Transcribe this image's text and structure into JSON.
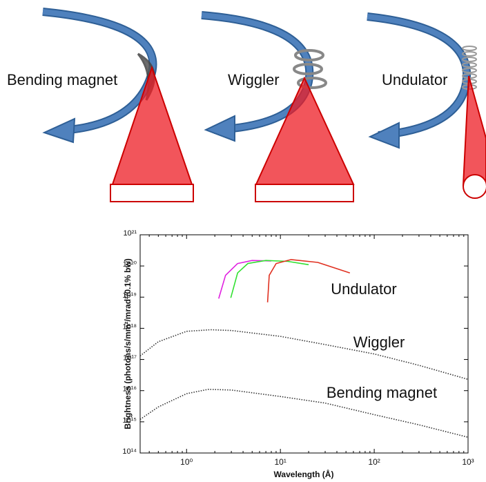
{
  "diagram": {
    "labels": [
      "Bending magnet",
      "Wiggler",
      "Undulator"
    ]
  },
  "chart_data": {
    "type": "line",
    "xlabel": "Wavelength (Å)",
    "ylabel": "Brightness (photons/s/mm²/mrad²/0.1% bw)",
    "xscale": "log",
    "yscale": "log",
    "xlim": [
      0.32,
      1000
    ],
    "ylim": [
      100000000000000.0,
      1e+21
    ],
    "xticks": [
      {
        "value": 1,
        "label": "10⁰"
      },
      {
        "value": 10,
        "label": "10¹"
      },
      {
        "value": 100,
        "label": "10²"
      },
      {
        "value": 1000,
        "label": "10³"
      }
    ],
    "yticks": [
      {
        "value": 100000000000000.0,
        "label": "10¹⁴"
      },
      {
        "value": 1000000000000000.0,
        "label": "10¹⁵"
      },
      {
        "value": 1e+16,
        "label": "10¹⁶"
      },
      {
        "value": 1e+17,
        "label": "10¹⁷"
      },
      {
        "value": 1e+18,
        "label": "10¹⁸"
      },
      {
        "value": 1e+19,
        "label": "10¹⁹"
      },
      {
        "value": 1e+20,
        "label": "10²⁰"
      },
      {
        "value": 1e+21,
        "label": "10²¹"
      }
    ],
    "series": [
      {
        "color": "#333333",
        "style": "dotted",
        "x": [
          0.32,
          0.5,
          1,
          1.8,
          3,
          10,
          30,
          100,
          300,
          1000
        ],
        "values": [
          1.3e+17,
          3.7e+17,
          8e+17,
          9e+17,
          8.5e+17,
          5.5e+17,
          3e+17,
          1.5e+17,
          6.5e+16,
          2.3e+16
        ]
      },
      {
        "color": "#333333",
        "style": "dotted",
        "x": [
          0.32,
          0.5,
          1,
          1.7,
          3,
          10,
          30,
          100,
          300,
          1000
        ],
        "values": [
          1200000000000000.0,
          3000000000000000.0,
          8000000000000000.0,
          1.1e+16,
          1.05e+16,
          6500000000000000.0,
          4000000000000000.0,
          1700000000000000.0,
          800000000000000.0,
          320000000000000.0
        ]
      },
      {
        "color": "#e020e0",
        "style": "solid",
        "x": [
          2.2,
          2.6,
          3.5,
          5,
          8
        ],
        "values": [
          9e+18,
          5e+19,
          1.2e+20,
          1.5e+20,
          1.45e+20
        ]
      },
      {
        "color": "#30e030",
        "style": "solid",
        "x": [
          2.96,
          3.5,
          4.5,
          7,
          12,
          20
        ],
        "values": [
          9.5e+18,
          6e+19,
          1.2e+20,
          1.5e+20,
          1.4e+20,
          1.1e+20
        ]
      },
      {
        "color": "#e03020",
        "style": "solid",
        "x": [
          7.3,
          7.6,
          9,
          13,
          25,
          55
        ],
        "values": [
          6.8e+18,
          5e+19,
          1.2e+20,
          1.6e+20,
          1.3e+20,
          6e+19
        ]
      }
    ],
    "annotations": [
      "Undulator",
      "Wiggler",
      "Bending magnet"
    ]
  }
}
